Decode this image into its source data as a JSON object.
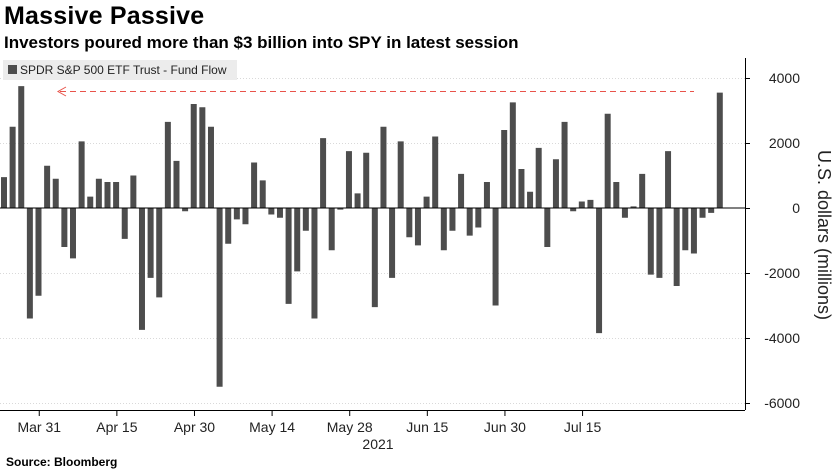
{
  "header": {
    "title": "Massive Passive",
    "subtitle": "Investors poured more than $3 billion into SPY in latest session"
  },
  "footer": {
    "source": "Source: Bloomberg"
  },
  "chart_data": {
    "type": "bar",
    "title": "Massive Passive",
    "subtitle": "Investors poured more than $3 billion into SPY in latest session",
    "legend": [
      "SPDR S&P 500 ETF Trust - Fund Flow"
    ],
    "legend_position": "top-left",
    "ylabel": "U.S. dollars (millions)",
    "xlabel": "",
    "ylim": [
      -6000,
      4500
    ],
    "yticks": [
      4000,
      2000,
      0,
      -2000,
      -4000,
      -6000
    ],
    "ytick_labels": [
      "4000",
      "2000",
      "0",
      "-2000",
      "-4000",
      "-6000"
    ],
    "x_tick_labels": [
      "Mar 31",
      "Apr 15",
      "Apr 30",
      "May 14",
      "May 28",
      "Jun 15",
      "Jun 30",
      "Jul 15"
    ],
    "x_tick_indices": [
      2,
      11,
      20,
      29,
      38,
      47,
      56,
      65
    ],
    "year_label": "2021",
    "series_color": "#4d4d4d",
    "reference_line_color": "#e8534a",
    "reference_value": 3600,
    "series": [
      {
        "name": "SPDR S&P 500 ETF Trust - Fund Flow",
        "values": [
          950,
          2500,
          3750,
          -3400,
          -2700,
          1300,
          900,
          -1200,
          -1550,
          2050,
          350,
          900,
          800,
          800,
          -950,
          1000,
          -3750,
          -2150,
          -2750,
          2650,
          1450,
          -100,
          3200,
          3100,
          2500,
          -5500,
          -1100,
          -350,
          -500,
          1400,
          850,
          -200,
          -300,
          -2950,
          -1950,
          -700,
          -3400,
          2150,
          -1300,
          -50,
          1750,
          450,
          1700,
          -3050,
          2500,
          -2150,
          2050,
          -900,
          -1150,
          350,
          2200,
          -1300,
          -700,
          1050,
          -850,
          -600,
          800,
          -3000,
          2400,
          3250,
          1200,
          500,
          1850,
          -1200,
          1500,
          2650,
          -100,
          200,
          250,
          -3850,
          2900,
          800,
          -300,
          50,
          1050,
          -2050,
          -2150,
          1750,
          -2400,
          -1300,
          -1400,
          -300,
          -150,
          3550
        ]
      }
    ]
  }
}
